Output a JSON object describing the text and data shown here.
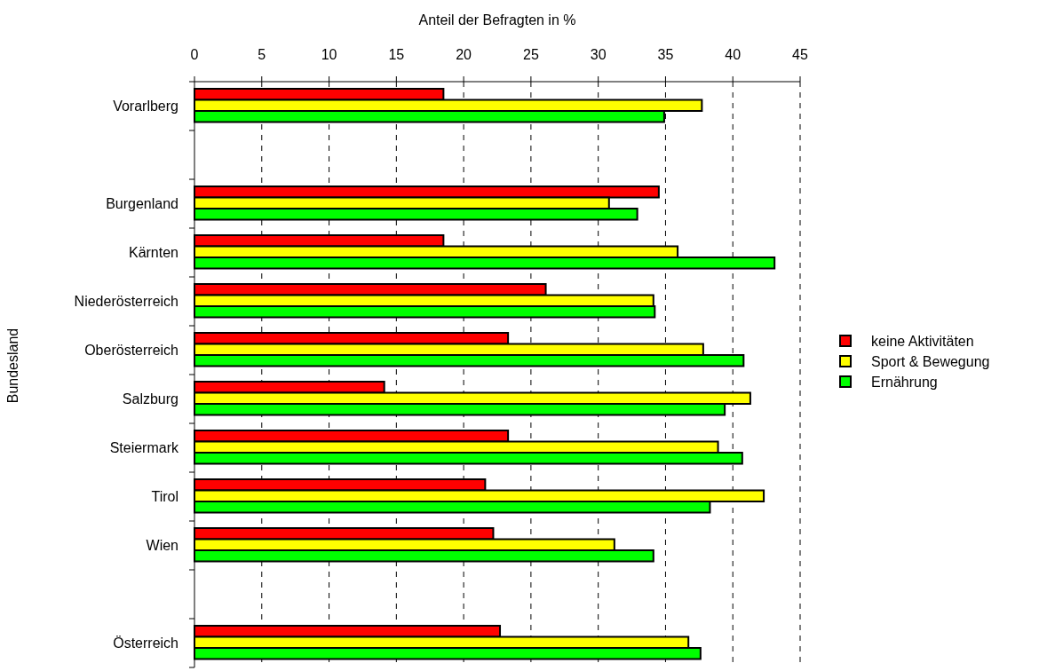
{
  "chart_data": {
    "type": "bar",
    "orientation": "horizontal",
    "xlabel": "Anteil der Befragten in %",
    "ylabel": "Bundesland",
    "categories": [
      "Vorarlberg",
      null,
      "Burgenland",
      "Kärnten",
      "Niederösterreich",
      "Oberösterreich",
      "Salzburg",
      "Steiermark",
      "Tirol",
      "Wien",
      null,
      "Österreich"
    ],
    "series": [
      {
        "name": "keine Aktivitäten",
        "color": "#ff0000",
        "values": [
          18.5,
          null,
          34.5,
          18.5,
          26.1,
          23.3,
          14.1,
          23.3,
          21.6,
          22.2,
          null,
          22.7
        ]
      },
      {
        "name": "Sport & Bewegung",
        "color": "#ffff00",
        "values": [
          37.7,
          null,
          30.8,
          35.9,
          34.1,
          37.8,
          41.3,
          38.9,
          42.3,
          31.2,
          null,
          36.7
        ]
      },
      {
        "name": "Ernährung",
        "color": "#00ff00",
        "values": [
          34.9,
          null,
          32.9,
          43.1,
          34.2,
          40.8,
          39.4,
          40.7,
          38.3,
          34.1,
          null,
          37.6
        ]
      }
    ],
    "xlim": [
      0,
      45
    ],
    "xticks": [
      0,
      5,
      10,
      15,
      20,
      25,
      30,
      35,
      40,
      45
    ],
    "grid": "x",
    "legend": "right",
    "line_style": "dashed"
  }
}
